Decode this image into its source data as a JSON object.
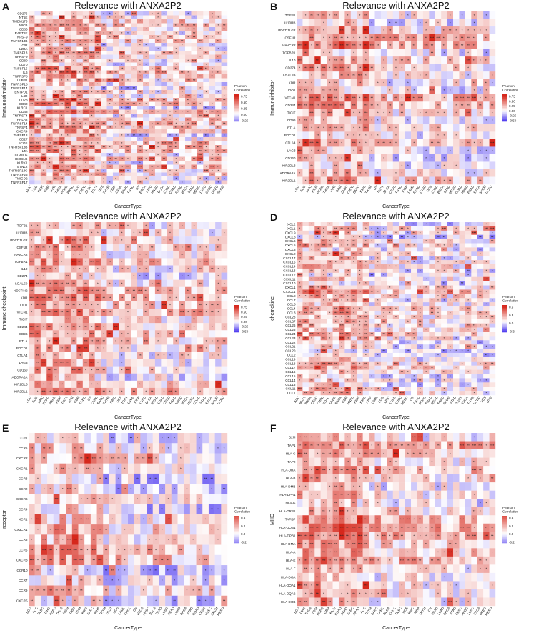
{
  "chart_data": [
    {
      "panel": "A",
      "type": "heatmap",
      "title": "Relevance with ANXA2P2",
      "xlabel": "CancerType",
      "ylabel": "Immunostimulator",
      "rows": [
        "CD276",
        "NT5E",
        "TMEM173",
        "MICB",
        "CD86",
        "RAET1E",
        "TNFSF9",
        "TNFSF13B",
        "PVR",
        "IL2RA",
        "TNFSF13",
        "TNFRSF9",
        "CD80",
        "CD70",
        "TNFSF15",
        "IL6",
        "TNFRSF8",
        "ULBP1",
        "TNFRSF18",
        "TNFRSF14",
        "ENTPD1",
        "IL6R",
        "CD28",
        "CD40",
        "KLRC1",
        "CD48",
        "TNFRSF4",
        "HHLA2",
        "TNFRSF14",
        "TNFSF4",
        "CXCR4",
        "TNFSF18",
        "CD27",
        "ICOS",
        "TNFRSF13B",
        "LTA",
        "CD40LG",
        "ICOSLG",
        "KLRK1",
        "BTNL2",
        "TNFRSF13C",
        "TNFRSF25",
        "TMIGD2",
        "TNFRSF17"
      ],
      "columns": [
        "LIHC",
        "LGG",
        "KICH",
        "GBM",
        "UVM",
        "THCA",
        "PCPG",
        "PRAD",
        "ACC",
        "CHOL",
        "DLBC",
        "TGCT",
        "UCS",
        "THYM",
        "KIRP",
        "LAML",
        "SARC",
        "PAAD",
        "OV",
        "ESCA",
        "KIRC",
        "HNSC",
        "BLCA",
        "LUAD",
        "COAD",
        "READ",
        "BRCA",
        "STAD",
        "MESO",
        "LUSC",
        "CESC",
        "UCEC",
        "SKCM"
      ],
      "legend": {
        "title": "Pearson Correlation",
        "ticks": [
          "0.75",
          "0.50",
          "0.25",
          "0.00",
          "-0.25"
        ],
        "range": [
          -0.3,
          0.8
        ]
      },
      "seed": 11,
      "bias": 0.12
    },
    {
      "panel": "B",
      "type": "heatmap",
      "title": "Relevance with ANXA2P2",
      "xlabel": "CancerType",
      "ylabel": "Immunoinhibitor",
      "rows": [
        "TGFB1",
        "IL10RB",
        "PDCD1LG2",
        "CSF1R",
        "HAVCR2",
        "TGFBR1",
        "IL10",
        "CD274",
        "LGALS9",
        "KDR",
        "IDO1",
        "VTCN1",
        "CD244",
        "TIGIT",
        "CD96",
        "BTLA",
        "PDCD1",
        "CTLA4",
        "LAG3",
        "CD160",
        "KIR2DL3",
        "ADORA2A",
        "KIR2DL1"
      ],
      "columns": [
        "LGG",
        "ACC",
        "LIHC",
        "KICH",
        "PCPG",
        "THCA",
        "UVM",
        "GBM",
        "DLBC",
        "CHOL",
        "SARC",
        "KIRC",
        "THYM",
        "OV",
        "TGCT",
        "BLCA",
        "CESC",
        "PAAD",
        "KIRP",
        "LAML",
        "READ",
        "LUSC",
        "UCS",
        "LUAD",
        "BRCA",
        "STAD",
        "MESO",
        "COAD",
        "HNSC",
        "PRAD",
        "ESCA",
        "SKCM",
        "UCEC"
      ],
      "legend": {
        "title": "Pearson Correlation",
        "ticks": [
          "0.75",
          "0.50",
          "0.25",
          "0.00",
          "-0.25",
          "-0.50"
        ],
        "range": [
          -0.5,
          0.8
        ]
      },
      "seed": 23,
      "bias": 0.15
    },
    {
      "panel": "C",
      "type": "heatmap",
      "title": "Relevance with ANXA2P2",
      "xlabel": "CancerType",
      "ylabel": "Immune checkpoint",
      "rows": [
        "TGFB1",
        "IL10RB",
        "PDCD1LG2",
        "CSF1R",
        "HAVCR2",
        "TGFBR1",
        "IL10",
        "CD274",
        "LGALS9",
        "NECTIN2",
        "KDR",
        "IDO1",
        "VTCN1",
        "TIGIT",
        "CD244",
        "CD96",
        "BTLA",
        "PDCD1",
        "CTLA4",
        "LAG3",
        "CD160",
        "ADORA2A",
        "KIR2DL3",
        "KIR2DL1"
      ],
      "columns": [
        "LGG",
        "ACC",
        "LIHC",
        "PCPG",
        "PRAD",
        "KICH",
        "THCA",
        "UVM",
        "GBM",
        "DLBC",
        "OV",
        "CHOL",
        "SARC",
        "THYM",
        "KIRC",
        "UCS",
        "TGCT",
        "LAML",
        "KIRP",
        "LUSC",
        "BLCA",
        "READ",
        "LUAD",
        "CESC",
        "PAAD",
        "HNSC",
        "BRCA",
        "MESO",
        "COAD",
        "STAD",
        "ESCA",
        "SKCM",
        "UCEC"
      ],
      "legend": {
        "title": "Pearson Correlation",
        "ticks": [
          "0.75",
          "0.50",
          "0.25",
          "0.00",
          "-0.25",
          "-0.50"
        ],
        "range": [
          -0.5,
          0.8
        ]
      },
      "seed": 37,
      "bias": 0.14
    },
    {
      "panel": "D",
      "type": "heatmap",
      "title": "Relevance with ANXA2P2",
      "xlabel": "CancerType",
      "ylabel": "chemokine",
      "rows": [
        "XCL2",
        "XCL1",
        "CXCL9",
        "CXCL8",
        "CXCL6",
        "CXCL5",
        "CXCL3",
        "CXCL2",
        "CXCL17",
        "CXCL16",
        "CXCL14",
        "CXCL13",
        "CXCL12",
        "CXCL11",
        "CXCL10",
        "CXCL1",
        "CX3CL1",
        "CCL8",
        "CCL7",
        "CCL5",
        "CCL4",
        "CCL3",
        "CCL28",
        "CCL27",
        "CCL26",
        "CCL25",
        "CCL24",
        "CCL23",
        "CCL22",
        "CCL21",
        "CCL20",
        "CCL2",
        "CCL19",
        "CCL18",
        "CCL17",
        "CCL16",
        "CCL15",
        "CCL14",
        "CCL13",
        "CCL11",
        "CCL1"
      ],
      "columns": [
        "ACC",
        "BLCA",
        "BRCA",
        "CESC",
        "CHOL",
        "COAD",
        "DLBC",
        "ESCA",
        "GBM",
        "HNSC",
        "KICH",
        "KIRC",
        "KIRP",
        "LAML",
        "LGG",
        "LIHC",
        "LUAD",
        "LUSC",
        "MESO",
        "OV",
        "PAAD",
        "PCPG",
        "PRAD",
        "READ",
        "SARC",
        "SKCM",
        "STAD",
        "TGCT",
        "THCA",
        "THYM",
        "UCEC",
        "UCS",
        "UVM"
      ],
      "legend": {
        "title": "Pearson Correlation",
        "ticks": [
          "0.6",
          "0.3",
          "0.0",
          "-0.3"
        ],
        "range": [
          -0.5,
          0.8
        ]
      },
      "seed": 51,
      "bias": 0.05
    },
    {
      "panel": "E",
      "type": "heatmap",
      "title": "Relevance with ANXA2P2",
      "xlabel": "CancerType",
      "ylabel": "receptor",
      "rows": [
        "CCR1",
        "CCR5",
        "CXCR2",
        "CXCR1",
        "CCR3",
        "CCR2",
        "CXCR6",
        "CCR4",
        "XCR1",
        "CX3CR1",
        "CCR8",
        "CCR6",
        "CXCR3",
        "CCR10",
        "CCR7",
        "CCR9",
        "CXCR5"
      ],
      "columns": [
        "LGG",
        "ACC",
        "DLBC",
        "LIHC",
        "PCPG",
        "THCA",
        "KICH",
        "GBM",
        "UVM",
        "KIRC",
        "SARC",
        "KIRP",
        "THYM",
        "TGCT",
        "UCS",
        "LAML",
        "CHOL",
        "OV",
        "ESCA",
        "HNSC",
        "BLCA",
        "PAAD",
        "LUSC",
        "READ",
        "LUAD",
        "BRCA",
        "STAD",
        "COAD",
        "CESC",
        "UCEC",
        "SKCM",
        "MESO"
      ],
      "legend": {
        "title": "Pearson Correlation",
        "ticks": [
          "0.4",
          "0.2",
          "0.0",
          "-0.2"
        ],
        "range": [
          -0.3,
          0.6
        ]
      },
      "seed": 67,
      "bias": 0.08
    },
    {
      "panel": "F",
      "type": "heatmap",
      "title": "Relevance with ANXA2P2",
      "xlabel": "CancerType",
      "ylabel": "MHC",
      "rows": [
        "B2M",
        "TAP1",
        "HLA-C",
        "TAP2",
        "HLA-DRA",
        "HLA-B",
        "HLA-DMB",
        "HLA-DPA1",
        "HLA-G",
        "HLA-DRB1",
        "TAPBP",
        "HLA-DQB1",
        "HLA-DPB1",
        "HLA-DMA",
        "HLA-A",
        "HLA-E",
        "HLA-F",
        "HLA-DOA",
        "HLA-DQA1",
        "HLA-DQA2",
        "HLA-DOB"
      ],
      "columns": [
        "LGG",
        "LIHC",
        "THCA",
        "UVM",
        "PCPG",
        "GBM",
        "KICH",
        "COAD",
        "READ",
        "SARC",
        "PRAD",
        "ACC",
        "THYM",
        "SARC",
        "LAML",
        "BLCA",
        "CHOL",
        "DLBC",
        "UCS",
        "KIRC",
        "KIRP",
        "THYM",
        "OV",
        "PAAD",
        "LUAD",
        "BRCA",
        "STAD",
        "CESC",
        "HNSC",
        "LUSC",
        "ESCA",
        "UCEC",
        "MESO"
      ],
      "legend": {
        "title": "Pearson Correlation",
        "ticks": [
          "0.4",
          "0.2",
          "0.0",
          "-0.2"
        ],
        "range": [
          -0.3,
          0.6
        ]
      },
      "seed": 83,
      "bias": 0.16
    }
  ]
}
